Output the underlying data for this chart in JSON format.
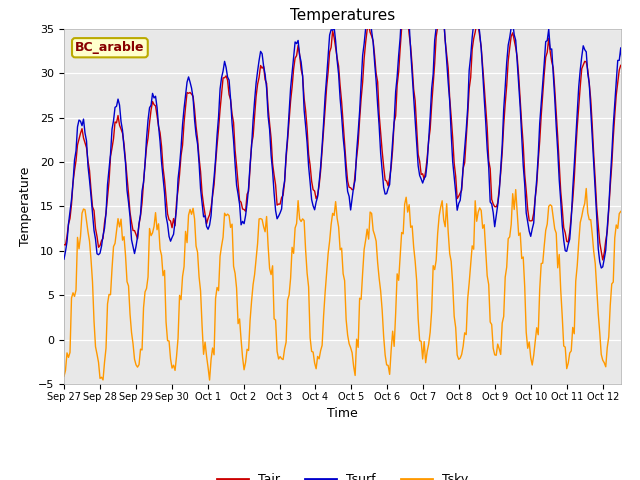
{
  "title": "Temperatures",
  "xlabel": "Time",
  "ylabel": "Temperature",
  "ylim": [
    -5,
    35
  ],
  "annotation": "BC_arable",
  "annotation_box_color": "#ffffcc",
  "annotation_border_color": "#bbaa00",
  "annotation_text_color": "#880000",
  "line_tair_color": "#cc0000",
  "line_tsurf_color": "#0000cc",
  "line_tsky_color": "#ff9900",
  "legend_labels": [
    "Tair",
    "Tsurf",
    "Tsky"
  ],
  "bg_color": "#e8e8e8",
  "tick_labels": [
    "Sep 27",
    "Sep 28",
    "Sep 29",
    "Sep 30",
    "Oct 1",
    "Oct 2",
    "Oct 3",
    "Oct 4",
    "Oct 5",
    "Oct 6",
    "Oct 7",
    "Oct 8",
    "Oct 9",
    "Oct 10",
    "Oct 11",
    "Oct 12"
  ]
}
